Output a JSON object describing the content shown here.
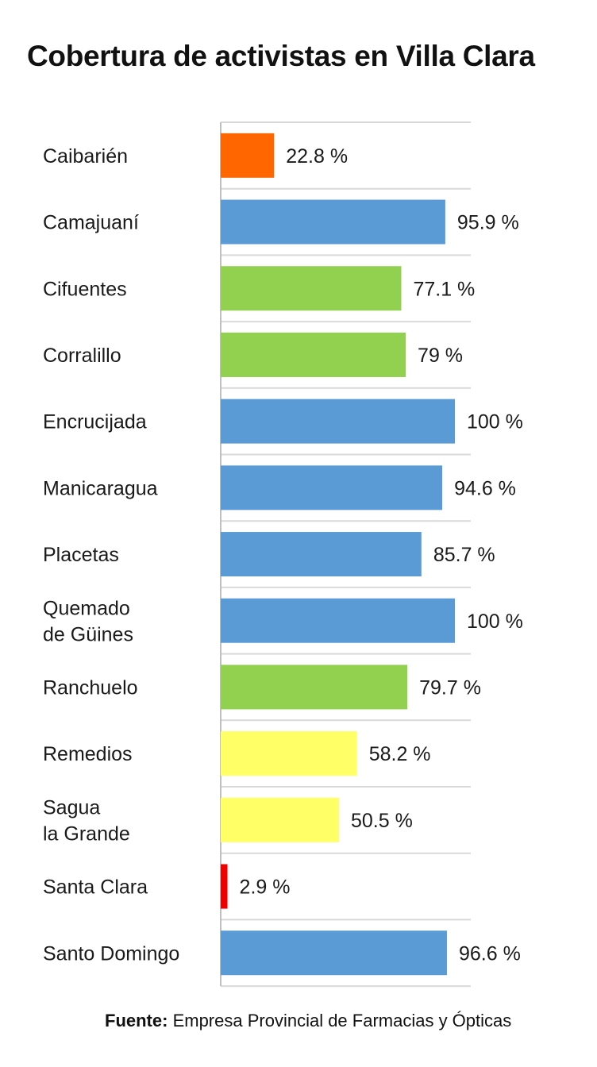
{
  "title": "Cobertura de activistas en Villa Clara",
  "source": {
    "prefix": "Fuente:",
    "text": " Empresa Provincial de Farmacias y Ópticas"
  },
  "chart_data": {
    "type": "bar",
    "orientation": "horizontal",
    "title": "Cobertura de activistas en Villa Clara",
    "xlim": [
      0,
      100
    ],
    "grid": true,
    "categories": [
      [
        "Caibarién"
      ],
      [
        "Camajuaní"
      ],
      [
        "Cifuentes"
      ],
      [
        "Corralillo"
      ],
      [
        "Encrucijada"
      ],
      [
        "Manicaragua"
      ],
      [
        "Placetas"
      ],
      [
        "Quemado",
        "de Güines"
      ],
      [
        "Ranchuelo"
      ],
      [
        "Remedios"
      ],
      [
        "Sagua",
        "la Grande"
      ],
      [
        "Santa Clara"
      ],
      [
        "Santo Domingo"
      ]
    ],
    "values": [
      22.8,
      95.9,
      77.1,
      79,
      100,
      94.6,
      85.7,
      100,
      79.7,
      58.2,
      50.5,
      2.9,
      96.6
    ],
    "value_labels": [
      "22.8 %",
      "95.9 %",
      "77.1 %",
      "79 %",
      "100 %",
      "94.6 %",
      "85.7 %",
      "100 %",
      "79.7 %",
      "58.2 %",
      "50.5 %",
      "2.9 %",
      "96.6 %"
    ],
    "bar_colors": [
      "#FF6600",
      "#5B9BD5",
      "#92D050",
      "#92D050",
      "#5B9BD5",
      "#5B9BD5",
      "#5B9BD5",
      "#5B9BD5",
      "#92D050",
      "#FFFF66",
      "#FFFF66",
      "#EE0000",
      "#5B9BD5"
    ],
    "grid_color": "#D9D9D9",
    "axis_color": "#BFBFBF"
  }
}
